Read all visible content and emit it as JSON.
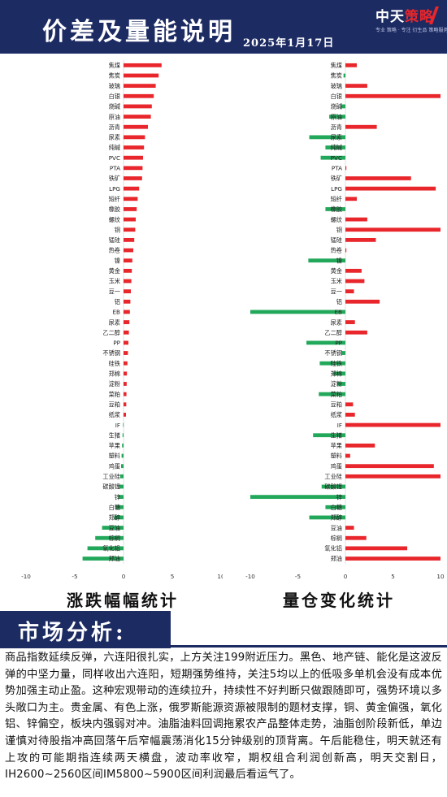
{
  "header": {
    "title": "价差及量能说明",
    "date": "2025年1月17日",
    "logo_prefix": "中天",
    "logo_accent": "策略",
    "logo_tagline": "专业 策略 · 专注 衍生品 策略服务"
  },
  "colors": {
    "up": "#e8262b",
    "down": "#22a85a",
    "navy": "#1d2b63"
  },
  "chart_data": [
    {
      "type": "bar",
      "orientation": "horizontal",
      "caption": "涨跌幅幅统计",
      "xlim": [
        -10,
        10
      ],
      "xticks": [
        -10,
        -5,
        0,
        5,
        10
      ],
      "categories": [
        "焦煤",
        "焦炭",
        "玻璃",
        "白银",
        "烧碱",
        "原油",
        "沥青",
        "尿素",
        "纯碱",
        "PVC",
        "PTA",
        "铁矿",
        "LPG",
        "短纤",
        "橡胶",
        "螺纹",
        "铜",
        "锰硅",
        "热卷",
        "镍",
        "黄金",
        "玉米",
        "豆一",
        "铝",
        "EB",
        "尿素",
        "乙二醇",
        "PP",
        "不锈钢",
        "硅铁",
        "郑棉",
        "淀粉",
        "菜粕",
        "豆粕",
        "纸浆",
        "IF",
        "生猪",
        "苹果",
        "塑料",
        "鸡蛋",
        "工业硅",
        "碳酸锂",
        "锌",
        "白糖",
        "郑醇",
        "豆油",
        "棕榈",
        "氧化铝",
        "郑油"
      ],
      "values": [
        3.9,
        3.6,
        3.3,
        3.1,
        2.9,
        2.8,
        2.5,
        2.2,
        2.1,
        2.0,
        1.95,
        1.9,
        1.6,
        1.45,
        1.35,
        1.25,
        1.2,
        1.1,
        1.0,
        0.9,
        0.85,
        0.8,
        0.75,
        0.7,
        0.65,
        0.6,
        0.55,
        0.5,
        0.45,
        0.4,
        0.35,
        0.32,
        0.3,
        0.28,
        0.25,
        -0.05,
        -0.1,
        -0.15,
        -0.2,
        -0.25,
        -0.35,
        -0.45,
        -0.55,
        -0.75,
        -0.95,
        -2.2,
        -2.9,
        -3.7,
        -4.2
      ]
    },
    {
      "type": "bar",
      "orientation": "horizontal",
      "caption": "量仓变化统计",
      "xlim": [
        -10,
        10
      ],
      "xticks": [
        -10,
        -5,
        0,
        5,
        10
      ],
      "categories": [
        "焦煤",
        "焦炭",
        "玻璃",
        "白银",
        "烧碱",
        "原油",
        "沥青",
        "尿素",
        "纯碱",
        "PVC",
        "PTA",
        "铁矿",
        "LPG",
        "短纤",
        "橡胶",
        "螺纹",
        "铜",
        "锰硅",
        "热卷",
        "镍",
        "黄金",
        "玉米",
        "豆一",
        "铝",
        "EB",
        "尿素",
        "乙二醇",
        "PP",
        "不锈钢",
        "硅铁",
        "郑棉",
        "淀粉",
        "菜粕",
        "豆粕",
        "纸浆",
        "IF",
        "生猪",
        "苹果",
        "塑料",
        "鸡蛋",
        "工业硅",
        "碳酸锂",
        "锌",
        "白糖",
        "郑醇",
        "豆油",
        "棕榈",
        "氧化铝",
        "郑油"
      ],
      "values": [
        1.2,
        -0.2,
        2.3,
        10,
        -0.5,
        -1.7,
        3.3,
        -3.8,
        -2.1,
        -2.6,
        0.1,
        6.9,
        9.5,
        1.2,
        -2.1,
        2.3,
        10,
        3.2,
        0.1,
        -3.9,
        1.7,
        2.0,
        0.9,
        3.6,
        -10,
        1.0,
        2.3,
        -4.1,
        -0.4,
        -2.7,
        -1.3,
        -0.8,
        -2.8,
        0.8,
        1.0,
        10,
        -3.4,
        3.1,
        0.5,
        9.3,
        10,
        -2.5,
        -10,
        -2.1,
        -3.8,
        0.9,
        2.2,
        6.5,
        10
      ]
    }
  ],
  "analysis": {
    "title": "市场分析:",
    "text": "商品指数延续反弹，六连阳很扎实，上方关注199附近压力。黑色、地产链、能化是这波反弹的中坚力量，同样收出六连阳，短期强势维持，关注5均以上的低吸多单机会没有成本优势加强主动止盈。这种宏观带动的连续拉升，持续性不好判断只做跟随即可，强势环境以多头敞口为主。贵金属、有色上涨，俄罗斯能源资源被限制的题材支撑，铜、黄金偏强，氧化铝、锌偏空，板块内强弱对冲。油脂油料回调拖累农产品整体走势，油脂创阶段新低，单边谨慎对待股指冲高回落午后窄幅震荡消化15分钟级别的顶背离。午后能稳住，明天就还有上攻的可能期指连续两天横盘，波动率收窄，期权组合利润创新高，明天交割日，IH2600~2560区间IM5800~5900区间利润最后看运气了。"
  }
}
